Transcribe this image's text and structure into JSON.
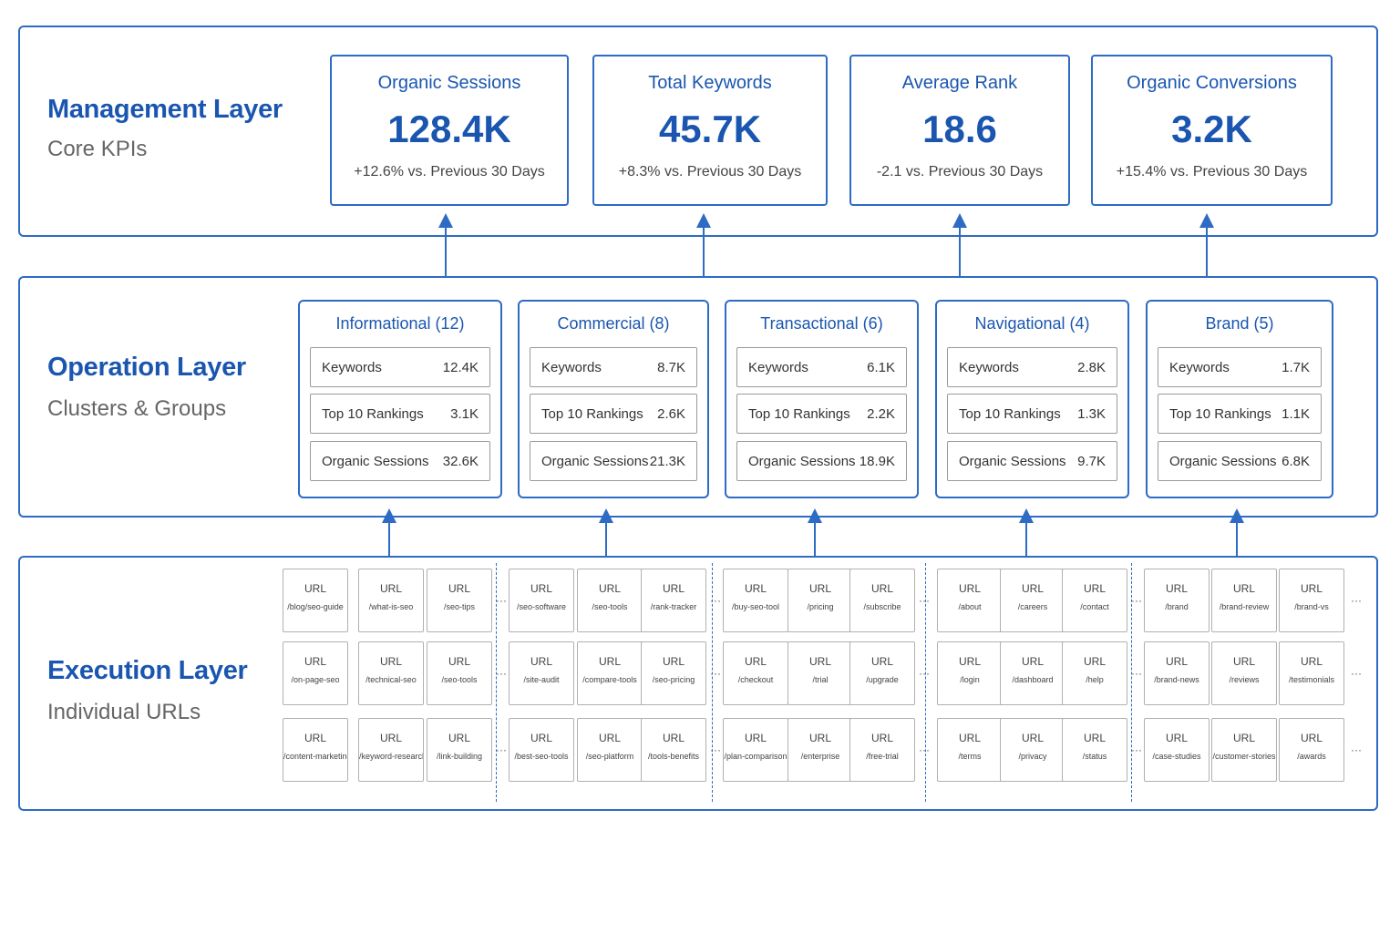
{
  "management": {
    "title": "Management Layer",
    "subtitle": "Core KPIs",
    "kpis": [
      {
        "title": "Organic Sessions",
        "value": "128.4K",
        "change": "+12.6% vs. Previous 30 Days"
      },
      {
        "title": "Total Keywords",
        "value": "45.7K",
        "change": "+8.3% vs. Previous 30 Days"
      },
      {
        "title": "Average Rank",
        "value": "18.6",
        "change": "-2.1 vs. Previous 30 Days"
      },
      {
        "title": "Organic Conversions",
        "value": "3.2K",
        "change": "+15.4% vs. Previous 30 Days"
      }
    ]
  },
  "operation": {
    "title": "Operation Layer",
    "subtitle": "Clusters & Groups",
    "clusters": [
      {
        "title": "Informational (12)",
        "metrics": [
          {
            "label": "Keywords",
            "value": "12.4K"
          },
          {
            "label": "Top 10 Rankings",
            "value": "3.1K"
          },
          {
            "label": "Organic Sessions",
            "value": "32.6K"
          }
        ]
      },
      {
        "title": "Commercial (8)",
        "metrics": [
          {
            "label": "Keywords",
            "value": "8.7K"
          },
          {
            "label": "Top 10 Rankings",
            "value": "2.6K"
          },
          {
            "label": "Organic Sessions",
            "value": "21.3K"
          }
        ]
      },
      {
        "title": "Transactional (6)",
        "metrics": [
          {
            "label": "Keywords",
            "value": "6.1K"
          },
          {
            "label": "Top 10 Rankings",
            "value": "2.2K"
          },
          {
            "label": "Organic Sessions",
            "value": "18.9K"
          }
        ]
      },
      {
        "title": "Navigational (4)",
        "metrics": [
          {
            "label": "Keywords",
            "value": "2.8K"
          },
          {
            "label": "Top 10 Rankings",
            "value": "1.3K"
          },
          {
            "label": "Organic Sessions",
            "value": "9.7K"
          }
        ]
      },
      {
        "title": "Brand (5)",
        "metrics": [
          {
            "label": "Keywords",
            "value": "1.7K"
          },
          {
            "label": "Top 10 Rankings",
            "value": "1.1K"
          },
          {
            "label": "Organic Sessions",
            "value": "6.8K"
          }
        ]
      }
    ]
  },
  "execution": {
    "title": "Execution Layer",
    "subtitle": "Individual URLs",
    "ellipsis": "···",
    "groups": [
      {
        "rows": [
          [
            {
              "label": "URL",
              "path": "/blog/seo-guide"
            },
            {
              "label": "URL",
              "path": "/what-is-seo"
            },
            {
              "label": "URL",
              "path": "/seo-tips"
            }
          ],
          [
            {
              "label": "URL",
              "path": "/on-page-seo"
            },
            {
              "label": "URL",
              "path": "/technical-seo"
            },
            {
              "label": "URL",
              "path": "/seo-tools"
            }
          ],
          [
            {
              "label": "URL",
              "path": "/content-marketing"
            },
            {
              "label": "URL",
              "path": "/keyword-research"
            },
            {
              "label": "URL",
              "path": "/link-building"
            }
          ]
        ]
      },
      {
        "rows": [
          [
            {
              "label": "URL",
              "path": "/seo-software"
            },
            {
              "label": "URL",
              "path": "/seo-tools"
            },
            {
              "label": "URL",
              "path": "/rank-tracker"
            }
          ],
          [
            {
              "label": "URL",
              "path": "/site-audit"
            },
            {
              "label": "URL",
              "path": "/compare-tools"
            },
            {
              "label": "URL",
              "path": "/seo-pricing"
            }
          ],
          [
            {
              "label": "URL",
              "path": "/best-seo-tools"
            },
            {
              "label": "URL",
              "path": "/seo-platform"
            },
            {
              "label": "URL",
              "path": "/tools-benefits"
            }
          ]
        ]
      },
      {
        "rows": [
          [
            {
              "label": "URL",
              "path": "/buy-seo-tool"
            },
            {
              "label": "URL",
              "path": "/pricing"
            },
            {
              "label": "URL",
              "path": "/subscribe"
            }
          ],
          [
            {
              "label": "URL",
              "path": "/checkout"
            },
            {
              "label": "URL",
              "path": "/trial"
            },
            {
              "label": "URL",
              "path": "/upgrade"
            }
          ],
          [
            {
              "label": "URL",
              "path": "/plan-comparison"
            },
            {
              "label": "URL",
              "path": "/enterprise"
            },
            {
              "label": "URL",
              "path": "/free-trial"
            }
          ]
        ]
      },
      {
        "rows": [
          [
            {
              "label": "URL",
              "path": "/about"
            },
            {
              "label": "URL",
              "path": "/careers"
            },
            {
              "label": "URL",
              "path": "/contact"
            }
          ],
          [
            {
              "label": "URL",
              "path": "/login"
            },
            {
              "label": "URL",
              "path": "/dashboard"
            },
            {
              "label": "URL",
              "path": "/help"
            }
          ],
          [
            {
              "label": "URL",
              "path": "/terms"
            },
            {
              "label": "URL",
              "path": "/privacy"
            },
            {
              "label": "URL",
              "path": "/status"
            }
          ]
        ]
      },
      {
        "rows": [
          [
            {
              "label": "URL",
              "path": "/brand"
            },
            {
              "label": "URL",
              "path": "/brand-review"
            },
            {
              "label": "URL",
              "path": "/brand-vs"
            }
          ],
          [
            {
              "label": "URL",
              "path": "/brand-news"
            },
            {
              "label": "URL",
              "path": "/reviews"
            },
            {
              "label": "URL",
              "path": "/testimonials"
            }
          ],
          [
            {
              "label": "URL",
              "path": "/case-studies"
            },
            {
              "label": "URL",
              "path": "/customer-stories"
            },
            {
              "label": "URL",
              "path": "/awards"
            }
          ]
        ]
      }
    ]
  },
  "colors": {
    "accent": "#2d6bc4",
    "title": "#1a56b0",
    "border_gray": "#b0b0b0"
  }
}
